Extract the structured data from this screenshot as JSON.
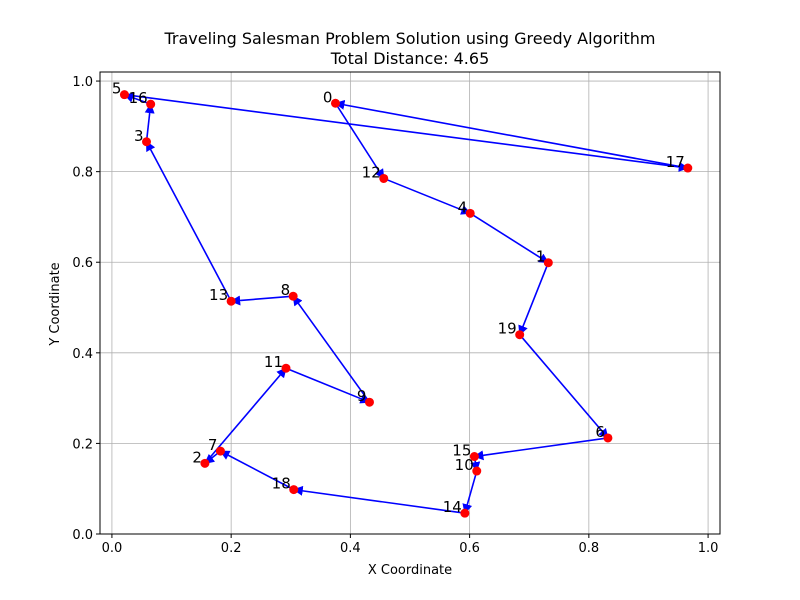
{
  "chart_data": {
    "type": "scatter",
    "title": "Traveling Salesman Problem Solution using Greedy Algorithm",
    "subtitle": "Total Distance: 4.65",
    "xlabel": "X Coordinate",
    "ylabel": "Y Coordinate",
    "xlim": [
      -0.02,
      1.02
    ],
    "ylim": [
      0.0,
      1.02
    ],
    "xticks": [
      0.0,
      0.2,
      0.4,
      0.6,
      0.8,
      1.0
    ],
    "xtick_labels": [
      "0.0",
      "0.2",
      "0.4",
      "0.6",
      "0.8",
      "1.0"
    ],
    "yticks": [
      0.0,
      0.2,
      0.4,
      0.6,
      0.8,
      1.0
    ],
    "ytick_labels": [
      "0.0",
      "0.2",
      "0.4",
      "0.6",
      "0.8",
      "1.0"
    ],
    "grid": true,
    "point_color": "#ff0000",
    "arrow_color": "#0000ff",
    "points": [
      {
        "id": "0",
        "x": 0.375,
        "y": 0.951
      },
      {
        "id": "1",
        "x": 0.732,
        "y": 0.599
      },
      {
        "id": "2",
        "x": 0.156,
        "y": 0.156
      },
      {
        "id": "3",
        "x": 0.058,
        "y": 0.866
      },
      {
        "id": "4",
        "x": 0.601,
        "y": 0.708
      },
      {
        "id": "5",
        "x": 0.021,
        "y": 0.97
      },
      {
        "id": "6",
        "x": 0.832,
        "y": 0.212
      },
      {
        "id": "7",
        "x": 0.182,
        "y": 0.183
      },
      {
        "id": "8",
        "x": 0.304,
        "y": 0.525
      },
      {
        "id": "9",
        "x": 0.432,
        "y": 0.291
      },
      {
        "id": "10",
        "x": 0.612,
        "y": 0.139
      },
      {
        "id": "11",
        "x": 0.292,
        "y": 0.366
      },
      {
        "id": "12",
        "x": 0.456,
        "y": 0.785
      },
      {
        "id": "13",
        "x": 0.2,
        "y": 0.514
      },
      {
        "id": "14",
        "x": 0.592,
        "y": 0.046
      },
      {
        "id": "15",
        "x": 0.608,
        "y": 0.171
      },
      {
        "id": "16",
        "x": 0.065,
        "y": 0.949
      },
      {
        "id": "17",
        "x": 0.966,
        "y": 0.808
      },
      {
        "id": "18",
        "x": 0.305,
        "y": 0.098
      },
      {
        "id": "19",
        "x": 0.684,
        "y": 0.44
      }
    ],
    "tour": [
      "0",
      "12",
      "4",
      "1",
      "19",
      "6",
      "15",
      "10",
      "14",
      "18",
      "7",
      "2",
      "11",
      "9",
      "8",
      "13",
      "3",
      "16",
      "5",
      "17",
      "0"
    ]
  }
}
